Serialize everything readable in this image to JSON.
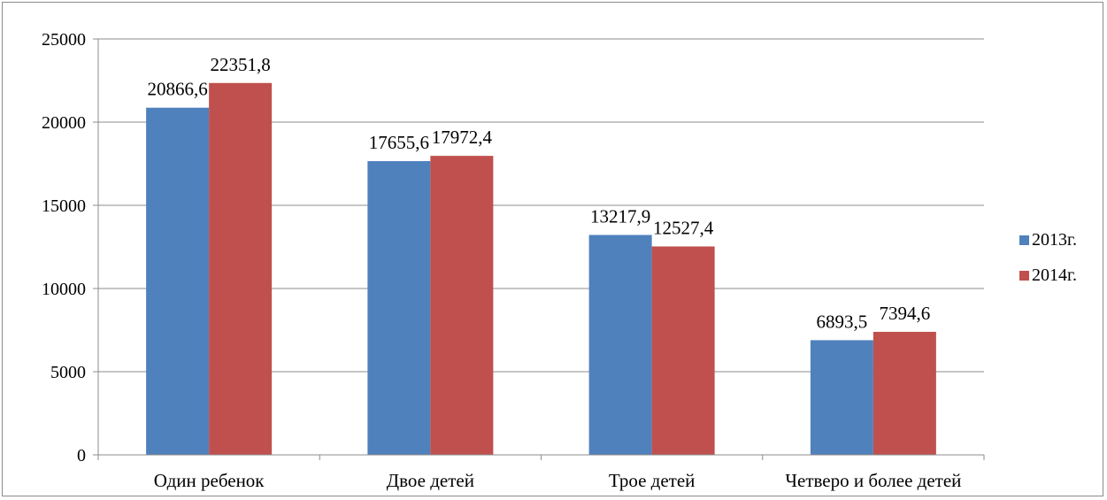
{
  "chart_data": {
    "type": "bar",
    "categories": [
      "Один ребенок",
      "Двое детей",
      "Трое детей",
      "Четверо и более детей"
    ],
    "series": [
      {
        "name": "2013г.",
        "color": "#4f81bd",
        "values": [
          20866.6,
          17655.6,
          13217.9,
          6893.5
        ],
        "labels": [
          "20866,6",
          "17655,6",
          "13217,9",
          "6893,5"
        ]
      },
      {
        "name": "2014г.",
        "color": "#c0504d",
        "values": [
          22351.8,
          17972.4,
          12527.4,
          7394.6
        ],
        "labels": [
          "22351,8",
          "17972,4",
          "12527,4",
          "7394,6"
        ]
      }
    ],
    "ylim": [
      0,
      25000
    ],
    "yticks": [
      0,
      5000,
      10000,
      15000,
      20000,
      25000
    ],
    "grid": true,
    "legend": "right",
    "title": "",
    "xlabel": "",
    "ylabel": ""
  }
}
